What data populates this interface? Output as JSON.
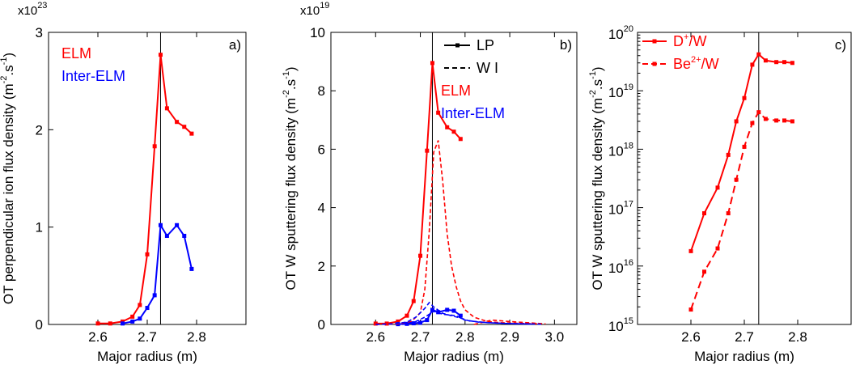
{
  "colors": {
    "elm": "#ff0000",
    "inter_elm": "#0000ff",
    "axis": "#000000"
  },
  "chart_data": [
    {
      "panel": "a)",
      "type": "line",
      "xlabel": "Major radius (m)",
      "ylabel": "OT perpendicular ion flux density (m",
      "ylabel_sup": "-2",
      "ylabel_tail": ".s",
      "ylabel_sup2": "-1",
      "ylabel_end": ")",
      "multiplier_base": "x10",
      "multiplier_exp": "23",
      "xlim": [
        2.5,
        2.9
      ],
      "ylim": [
        0,
        3
      ],
      "xticks": [
        2.6,
        2.7,
        2.8
      ],
      "xtick_labels": [
        "2.6",
        "2.7",
        "2.8"
      ],
      "yticks": [
        0,
        1,
        2,
        3
      ],
      "ytick_labels": [
        "0",
        "1",
        "2",
        "3"
      ],
      "vline_x": 2.727,
      "legend_position": "top-left",
      "legend": [
        {
          "label": "ELM",
          "color": "#ff0000"
        },
        {
          "label": "Inter-ELM",
          "color": "#0000ff"
        }
      ],
      "series": [
        {
          "name": "ELM",
          "color": "#ff0000",
          "dash": "solid",
          "marker": true,
          "x": [
            2.6,
            2.625,
            2.65,
            2.67,
            2.685,
            2.7,
            2.715,
            2.727,
            2.74,
            2.76,
            2.775,
            2.79
          ],
          "y": [
            0.01,
            0.01,
            0.03,
            0.08,
            0.2,
            0.72,
            1.83,
            2.77,
            2.22,
            2.08,
            2.03,
            1.96
          ]
        },
        {
          "name": "Inter-ELM",
          "color": "#0000ff",
          "dash": "solid",
          "marker": true,
          "x": [
            2.65,
            2.67,
            2.685,
            2.7,
            2.715,
            2.727,
            2.74,
            2.76,
            2.775,
            2.79
          ],
          "y": [
            0.01,
            0.03,
            0.06,
            0.17,
            0.3,
            1.02,
            0.91,
            1.02,
            0.91,
            0.57
          ]
        }
      ]
    },
    {
      "panel": "b)",
      "type": "line",
      "xlabel": "Major radius (m)",
      "ylabel": "OT W sputtering flux density (m",
      "ylabel_sup": "-2",
      "ylabel_tail": ".s",
      "ylabel_sup2": "-1",
      "ylabel_end": ")",
      "multiplier_base": "x10",
      "multiplier_exp": "19",
      "xlim": [
        2.5,
        3.05
      ],
      "ylim": [
        0,
        10
      ],
      "xticks": [
        2.6,
        2.7,
        2.8,
        2.9,
        3.0
      ],
      "xtick_labels": [
        "2.6",
        "2.7",
        "2.8",
        "2.9",
        "3.0"
      ],
      "yticks": [
        0,
        2,
        4,
        6,
        8,
        10
      ],
      "ytick_labels": [
        "0",
        "2",
        "4",
        "6",
        "8",
        "10"
      ],
      "vline_x": 2.727,
      "legend_position": "top-right",
      "legend": [
        {
          "label": "LP",
          "color": "#000000",
          "style": "solid-marker"
        },
        {
          "label": "W I",
          "color": "#000000",
          "style": "dashed"
        },
        {
          "label": "ELM",
          "color": "#ff0000",
          "style": "text"
        },
        {
          "label": "Inter-ELM",
          "color": "#0000ff",
          "style": "text"
        }
      ],
      "series": [
        {
          "name": "ELM LP",
          "color": "#ff0000",
          "dash": "solid",
          "marker": true,
          "x": [
            2.6,
            2.625,
            2.65,
            2.67,
            2.685,
            2.7,
            2.715,
            2.727,
            2.74,
            2.76,
            2.775,
            2.79
          ],
          "y": [
            0.03,
            0.03,
            0.1,
            0.3,
            0.8,
            2.35,
            5.95,
            8.95,
            7.25,
            6.75,
            6.6,
            6.35
          ]
        },
        {
          "name": "Inter-ELM LP",
          "color": "#0000ff",
          "dash": "solid",
          "marker": true,
          "x": [
            2.65,
            2.67,
            2.685,
            2.7,
            2.715,
            2.727,
            2.74,
            2.76,
            2.775,
            2.79
          ],
          "y": [
            0.01,
            0.02,
            0.04,
            0.06,
            0.15,
            0.5,
            0.42,
            0.5,
            0.47,
            0.3
          ]
        },
        {
          "name": "ELM W I",
          "color": "#ff0000",
          "dash": "dashed",
          "marker": false,
          "x": [
            2.6,
            2.65,
            2.68,
            2.7,
            2.71,
            2.72,
            2.73,
            2.74,
            2.75,
            2.76,
            2.77,
            2.78,
            2.79,
            2.8,
            2.82,
            2.85,
            2.88,
            2.92,
            2.97
          ],
          "y": [
            0.0,
            0.02,
            0.1,
            0.4,
            1.2,
            3.2,
            5.9,
            6.3,
            4.9,
            3.1,
            2.0,
            1.3,
            0.8,
            0.5,
            0.25,
            0.1,
            0.06,
            0.04,
            0.02
          ]
        },
        {
          "name": "ELM W I tail",
          "color": "#ff0000",
          "dash": "dashed",
          "marker": false,
          "x": [
            2.82,
            2.86,
            2.9,
            2.95,
            2.98
          ],
          "y": [
            0.0,
            0.15,
            0.1,
            0.05,
            0.02
          ]
        },
        {
          "name": "Inter-ELM W I",
          "color": "#0000ff",
          "dash": "dashed",
          "marker": false,
          "x": [
            2.6,
            2.64,
            2.67,
            2.69,
            2.71,
            2.72,
            2.73,
            2.75,
            2.77,
            2.79,
            2.81,
            2.85,
            2.9,
            2.97
          ],
          "y": [
            0.0,
            0.02,
            0.08,
            0.25,
            0.55,
            0.75,
            0.6,
            0.38,
            0.3,
            0.22,
            0.12,
            0.06,
            0.03,
            0.01
          ]
        },
        {
          "name": "Inter-ELM W I b",
          "color": "#0000ff",
          "dash": "dashed",
          "marker": false,
          "x": [
            2.66,
            2.69,
            2.71,
            2.73,
            2.75,
            2.78,
            2.8,
            2.83,
            2.88,
            2.95
          ],
          "y": [
            0.0,
            0.1,
            0.25,
            0.45,
            0.35,
            0.3,
            0.15,
            0.08,
            0.04,
            0.01
          ]
        }
      ]
    },
    {
      "panel": "c)",
      "type": "line",
      "yscale": "log",
      "xlabel": "Major radius (m)",
      "ylabel": "OT W sputtering flux density (m",
      "ylabel_sup": "-2",
      "ylabel_tail": ".s",
      "ylabel_sup2": "-1",
      "ylabel_end": ")",
      "xlim": [
        2.5,
        2.9
      ],
      "ylim": [
        1000000000000000.0,
        1e+20
      ],
      "xticks": [
        2.6,
        2.7,
        2.8
      ],
      "xtick_labels": [
        "2.6",
        "2.7",
        "2.8"
      ],
      "ytick_exps": [
        "15",
        "16",
        "17",
        "18",
        "19",
        "20"
      ],
      "ytick_base": "10",
      "vline_x": 2.727,
      "legend_position": "top-left",
      "legend": [
        {
          "label": "D",
          "sup": "+",
          "tail": "/W",
          "color": "#ff0000",
          "style": "solid-marker"
        },
        {
          "label": "Be",
          "sup": "2+",
          "tail": "/W",
          "color": "#ff0000",
          "style": "dashed-marker"
        }
      ],
      "series": [
        {
          "name": "D+/W",
          "color": "#ff0000",
          "dash": "solid",
          "marker": true,
          "x": [
            2.6,
            2.625,
            2.65,
            2.67,
            2.685,
            2.7,
            2.715,
            2.727,
            2.74,
            2.76,
            2.775,
            2.79
          ],
          "y": [
            1.8e+16,
            8e+16,
            2.2e+17,
            8e+17,
            3e+18,
            7.5e+18,
            2.8e+19,
            4.2e+19,
            3.3e+19,
            3.1e+19,
            3.1e+19,
            3e+19
          ]
        },
        {
          "name": "Be2+/W",
          "color": "#ff0000",
          "dash": "dashed",
          "marker": true,
          "x": [
            2.6,
            2.625,
            2.65,
            2.67,
            2.685,
            2.7,
            2.715,
            2.727,
            2.74,
            2.76,
            2.775,
            2.79
          ],
          "y": [
            1800000000000000.0,
            8000000000000000.0,
            2e+16,
            8e+16,
            3e+17,
            1.1e+18,
            2.8e+18,
            4.3e+18,
            3.3e+18,
            3.1e+18,
            3.1e+18,
            3e+18
          ]
        }
      ]
    }
  ]
}
